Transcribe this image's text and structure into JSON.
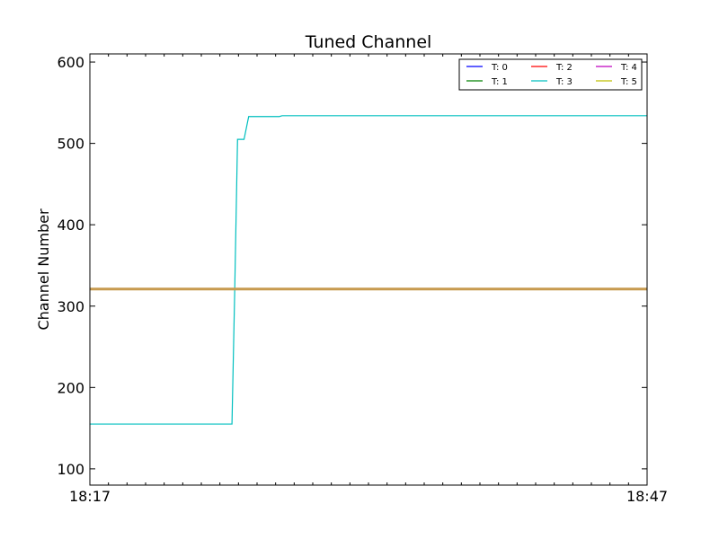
{
  "chart_data": {
    "type": "line",
    "title": "Tuned Channel",
    "xlabel": "",
    "ylabel": "Channel Number",
    "x_ticks": [
      "18:17",
      "18:47"
    ],
    "y_ticks": [
      100,
      200,
      300,
      400,
      500,
      600
    ],
    "xlim_minutes": [
      0,
      30
    ],
    "ylim": [
      80,
      610
    ],
    "grid": false,
    "legend": {
      "placement": "top-right",
      "columns": 3
    },
    "series": [
      {
        "name": "T: 0",
        "color": "#0000ff",
        "points": [
          [
            0,
            321
          ],
          [
            30,
            321
          ]
        ]
      },
      {
        "name": "T: 1",
        "color": "#008000",
        "points": [
          [
            0,
            321
          ],
          [
            30,
            321
          ]
        ]
      },
      {
        "name": "T: 2",
        "color": "#ff0000",
        "points": [
          [
            0,
            321
          ],
          [
            30,
            321
          ]
        ]
      },
      {
        "name": "T: 3",
        "color": "#00bfbf",
        "points": [
          [
            0,
            155
          ],
          [
            7.65,
            155
          ],
          [
            7.8,
            321
          ],
          [
            7.95,
            505
          ],
          [
            8.3,
            505
          ],
          [
            8.55,
            533
          ],
          [
            10.2,
            533
          ],
          [
            10.35,
            534
          ],
          [
            30,
            534
          ]
        ]
      },
      {
        "name": "T: 4",
        "color": "#bf00bf",
        "points": [
          [
            0,
            321
          ],
          [
            30,
            321
          ]
        ]
      },
      {
        "name": "T: 5",
        "color": "#bfbf00",
        "points": [
          [
            0,
            321
          ],
          [
            30,
            321
          ]
        ]
      }
    ],
    "overlap_color": "#c79a4f"
  }
}
